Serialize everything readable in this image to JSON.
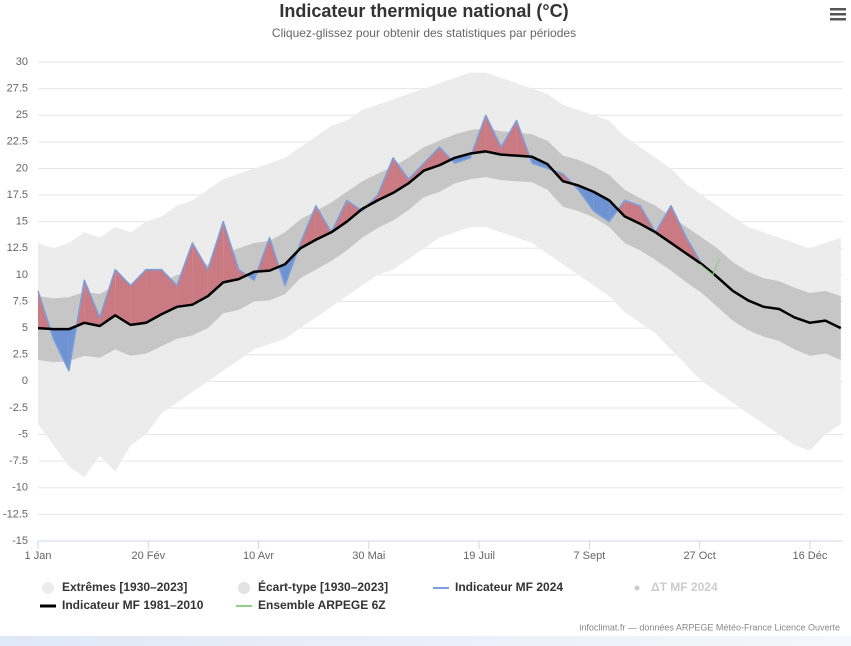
{
  "chart_data": {
    "type": "line",
    "title": "Indicateur thermique national (°C)",
    "subtitle": "Cliquez-glissez pour obtenir des statistiques par périodes",
    "credits": "infoclimat.fr — données ARPEGE Météo-France Licence Ouverte",
    "xlim": [
      0,
      365
    ],
    "xticks": [
      {
        "value": 0,
        "label": "1 Jan"
      },
      {
        "value": 50,
        "label": "20 Fév"
      },
      {
        "value": 100,
        "label": "10 Avr"
      },
      {
        "value": 150,
        "label": "30 Mai"
      },
      {
        "value": 200,
        "label": "19 Juil"
      },
      {
        "value": 250,
        "label": "7 Sept"
      },
      {
        "value": 300,
        "label": "27 Oct"
      },
      {
        "value": 350,
        "label": "16 Déc"
      }
    ],
    "ylim": [
      -15,
      30
    ],
    "yticks": [
      {
        "value": -15,
        "label": "-15"
      },
      {
        "value": -12.5,
        "label": "-12.5"
      },
      {
        "value": -10,
        "label": "-10"
      },
      {
        "value": -7.5,
        "label": "-7.5"
      },
      {
        "value": -5,
        "label": "-5"
      },
      {
        "value": -2.5,
        "label": "-2.5"
      },
      0,
      2.5,
      5,
      7.5,
      10,
      12.5,
      15,
      17.5,
      20,
      22.5,
      25,
      27.5,
      30
    ],
    "grid": true,
    "above_color": "#c97a82",
    "below_color": "#6f93d2",
    "x": [
      0,
      7,
      14,
      21,
      28,
      35,
      42,
      49,
      56,
      63,
      70,
      77,
      84,
      91,
      98,
      105,
      112,
      119,
      126,
      133,
      140,
      147,
      154,
      161,
      168,
      175,
      182,
      189,
      196,
      203,
      210,
      217,
      224,
      231,
      238,
      245,
      252,
      259,
      266,
      273,
      280,
      287,
      294,
      301,
      308,
      315,
      322,
      329,
      336,
      343,
      350,
      357,
      364
    ],
    "series": [
      {
        "name": "Extrêmes [1930–2023]",
        "color": "#ececec",
        "high": [
          13,
          12.5,
          13,
          14,
          13.5,
          14.5,
          14,
          15,
          15.5,
          16.5,
          17,
          18,
          19,
          19.5,
          20,
          20.5,
          21,
          22,
          23,
          24,
          24.5,
          25.5,
          26,
          26.5,
          27,
          27.5,
          28,
          28.5,
          29,
          29,
          28.5,
          28,
          27.5,
          27,
          26,
          25.5,
          25,
          24.5,
          23,
          22,
          21,
          20,
          18.5,
          17.5,
          16.5,
          15.5,
          14.5,
          14,
          13.5,
          13,
          12.5,
          13,
          13.5
        ],
        "low": [
          -4,
          -6,
          -8,
          -9,
          -7,
          -8.5,
          -6,
          -5,
          -3,
          -2,
          -1,
          0,
          1,
          2,
          3,
          3.5,
          4,
          5,
          6,
          7,
          8,
          9,
          10,
          10.5,
          11.5,
          12.5,
          13.5,
          14,
          14.5,
          14.5,
          14,
          13.5,
          13,
          12,
          11,
          10,
          9,
          8,
          6.5,
          5.5,
          4.5,
          3,
          1.5,
          0,
          -1,
          -2,
          -3,
          -4,
          -5,
          -6,
          -6.5,
          -5,
          -4
        ]
      },
      {
        "name": "Écart-type [1930–2023]",
        "color": "#c6c6c6",
        "high": [
          8.0,
          7.8,
          7.9,
          8.4,
          8.2,
          9.0,
          8.5,
          8.8,
          9.3,
          10.0,
          10.2,
          11.0,
          12.0,
          12.5,
          13.0,
          13.2,
          14.0,
          15.2,
          16.0,
          16.8,
          17.8,
          18.8,
          19.5,
          20.2,
          21.0,
          22.0,
          22.6,
          23.2,
          23.6,
          23.8,
          23.5,
          23.4,
          23.2,
          22.6,
          21.2,
          20.8,
          20.2,
          19.4,
          18.0,
          17.2,
          16.5,
          15.5,
          14.5,
          13.5,
          12.5,
          11.2,
          10.3,
          9.7,
          9.4,
          8.8,
          8.3,
          8.5,
          8.0
        ],
        "low": [
          2.0,
          1.8,
          1.9,
          2.4,
          2.2,
          3.0,
          2.4,
          2.6,
          3.3,
          4.0,
          4.3,
          5.0,
          6.4,
          6.7,
          7.5,
          7.6,
          8.2,
          9.7,
          10.5,
          11.3,
          12.3,
          13.5,
          14.4,
          15.1,
          16.1,
          17.3,
          17.8,
          18.6,
          19.0,
          19.2,
          18.9,
          18.8,
          18.7,
          18.0,
          16.4,
          16.0,
          15.4,
          14.5,
          13.0,
          12.3,
          11.4,
          10.4,
          9.3,
          8.3,
          7.0,
          5.7,
          4.8,
          4.2,
          3.8,
          3.0,
          2.4,
          2.6,
          2.0
        ]
      },
      {
        "name": "Indicateur MF 2024",
        "color": "#7b9fdc",
        "values": [
          8.5,
          4.0,
          1.0,
          9.5,
          6,
          10.5,
          9.0,
          10.5,
          10.5,
          9.0,
          13.0,
          10.5,
          15.0,
          10.5,
          9.5,
          13.5,
          9.0,
          13.0,
          16.5,
          14.0,
          17.0,
          16.0,
          17.5,
          21.0,
          19.0,
          20.5,
          22.0,
          20.5,
          21.0,
          25.0,
          22.0,
          24.5,
          20.5,
          20.0,
          19.5,
          18.0,
          16.0,
          15.0,
          17.0,
          16.5,
          14.0,
          16.5,
          13.5,
          11.0,
          null,
          null,
          null,
          null,
          null,
          null,
          null,
          null,
          null
        ]
      },
      {
        "name": "Indicateur MF 1981–2010",
        "color": "#000000",
        "values": [
          5,
          4.9,
          4.9,
          5.5,
          5.2,
          6.2,
          5.3,
          5.5,
          6.3,
          7.0,
          7.2,
          8.0,
          9.3,
          9.6,
          10.3,
          10.4,
          11.0,
          12.5,
          13.3,
          14.0,
          15.0,
          16.2,
          17.0,
          17.7,
          18.6,
          19.8,
          20.3,
          21.0,
          21.4,
          21.6,
          21.3,
          21.2,
          21.1,
          20.4,
          18.8,
          18.4,
          17.8,
          17.0,
          15.5,
          14.8,
          14.0,
          13.0,
          12.0,
          11.0,
          9.8,
          8.5,
          7.6,
          7.0,
          6.8,
          6.0,
          5.5,
          5.7,
          5.0
        ]
      },
      {
        "name": "Ensemble ARPEGE 6Z",
        "color": "#8fcf8a",
        "x": [
          300,
          303,
          306,
          309
        ],
        "values": [
          11,
          10.5,
          10.0,
          11.5
        ]
      }
    ],
    "hidden_series": [
      {
        "name": "ΔT MF 2024"
      }
    ]
  }
}
